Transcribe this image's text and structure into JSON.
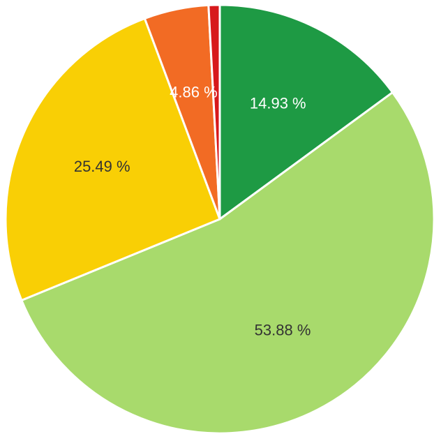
{
  "chart_data": {
    "type": "pie",
    "start_angle_deg": 0,
    "direction": "clockwise",
    "slices": [
      {
        "value": 14.93,
        "label": "14.93 %",
        "color": "#1e9a44",
        "label_color": "#ffffff",
        "show_label": true
      },
      {
        "value": 53.88,
        "label": "53.88 %",
        "color": "#a8da6c",
        "label_color": "#333333",
        "show_label": true
      },
      {
        "value": 25.49,
        "label": "25.49 %",
        "color": "#f9cf05",
        "label_color": "#333333",
        "show_label": true
      },
      {
        "value": 4.86,
        "label": "4.86 %",
        "color": "#f26b24",
        "label_color": "#ffffff",
        "show_label": true
      },
      {
        "value": 0.84,
        "label": "",
        "color": "#d7191c",
        "label_color": "#ffffff",
        "show_label": false
      }
    ]
  }
}
